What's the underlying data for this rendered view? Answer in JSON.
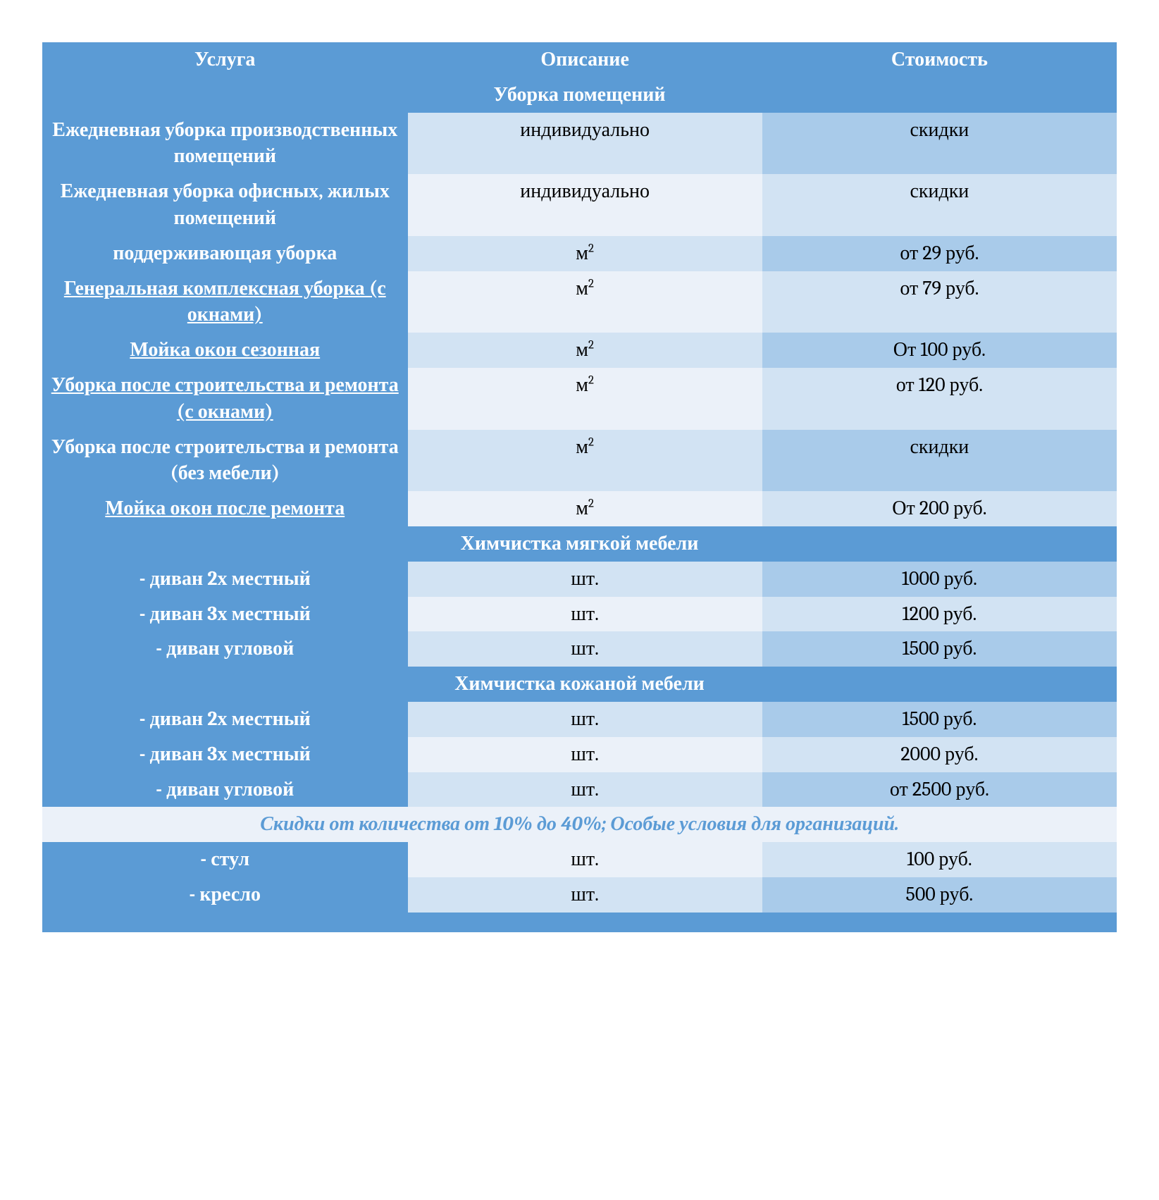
{
  "table": {
    "columns": [
      "Услуга",
      "Описание",
      "Стоимость"
    ],
    "column_widths": [
      "34%",
      "33%",
      "33%"
    ],
    "header_bg": "#5b9bd5",
    "header_fg": "#ffffff",
    "service_col_bg": "#5b9bd5",
    "service_col_fg": "#ffffff",
    "row_alt_desc_bg": [
      "#d2e3f3",
      "#ebf1f9"
    ],
    "row_alt_price_bg": [
      "#a9cbea",
      "#d2e3f3"
    ],
    "note_bg": "#ebf1f9",
    "note_fg": "#5b9bd5",
    "font_family": "Cambria, Georgia, serif",
    "font_size_pt": 21,
    "sections": [
      {
        "title": "Уборка помещений",
        "rows": [
          {
            "service": "Ежедневная уборка производственных помещений",
            "underlined": false,
            "desc": "индивидуально",
            "desc_is_m2": false,
            "price": "скидки"
          },
          {
            "service": "Ежедневная уборка офисных, жилых помещений",
            "underlined": false,
            "desc": "индивидуально",
            "desc_is_m2": false,
            "price": "скидки"
          },
          {
            "service": "поддерживающая уборка",
            "underlined": false,
            "desc": "м²",
            "desc_is_m2": true,
            "price": "от 29 руб."
          },
          {
            "service": "Генеральная комплексная уборка (с окнами)",
            "underlined": true,
            "desc": "м²",
            "desc_is_m2": true,
            "price": "от 79 руб."
          },
          {
            "service": "Мойка окон сезонная",
            "underlined": true,
            "desc": "м²",
            "desc_is_m2": true,
            "price": "От 100 руб."
          },
          {
            "service": "Уборка после строительства и ремонта (с окнами)",
            "underlined": true,
            "desc": "м²",
            "desc_is_m2": true,
            "price": "от 120 руб."
          },
          {
            "service": "Уборка после строительства и ремонта (без мебели)",
            "underlined": false,
            "desc": "м²",
            "desc_is_m2": true,
            "price": "скидки"
          },
          {
            "service": "Мойка окон после ремонта",
            "underlined": true,
            "desc": "м²",
            "desc_is_m2": true,
            "price": "От 200 руб."
          }
        ]
      },
      {
        "title": "Химчистка мягкой мебели",
        "rows": [
          {
            "service": "-  диван 2х местный",
            "underlined": false,
            "desc": "шт.",
            "desc_is_m2": false,
            "price": "1000 руб."
          },
          {
            "service": "-  диван 3х местный",
            "underlined": false,
            "desc": "шт.",
            "desc_is_m2": false,
            "price": "1200 руб."
          },
          {
            "service": "- диван угловой",
            "underlined": false,
            "desc": "шт.",
            "desc_is_m2": false,
            "price": "1500 руб."
          }
        ]
      },
      {
        "title": "Химчистка кожаной мебели",
        "rows": [
          {
            "service": "-  диван 2х местный",
            "underlined": false,
            "desc": "шт.",
            "desc_is_m2": false,
            "price": "1500 руб."
          },
          {
            "service": "-  диван 3х местный",
            "underlined": false,
            "desc": "шт.",
            "desc_is_m2": false,
            "price": "2000 руб."
          },
          {
            "service": "-  диван угловой",
            "underlined": false,
            "desc": "шт.",
            "desc_is_m2": false,
            "price": "от 2500 руб."
          }
        ],
        "note_after": "Скидки от количества от 10% до 40%; Особые условия для организаций.",
        "rows_after_note": [
          {
            "service": "-  стул",
            "underlined": false,
            "desc": "шт.",
            "desc_is_m2": false,
            "price": "100 руб."
          },
          {
            "service": "-  кресло",
            "underlined": false,
            "desc": "шт.",
            "desc_is_m2": false,
            "price": "500 руб."
          }
        ]
      }
    ]
  }
}
